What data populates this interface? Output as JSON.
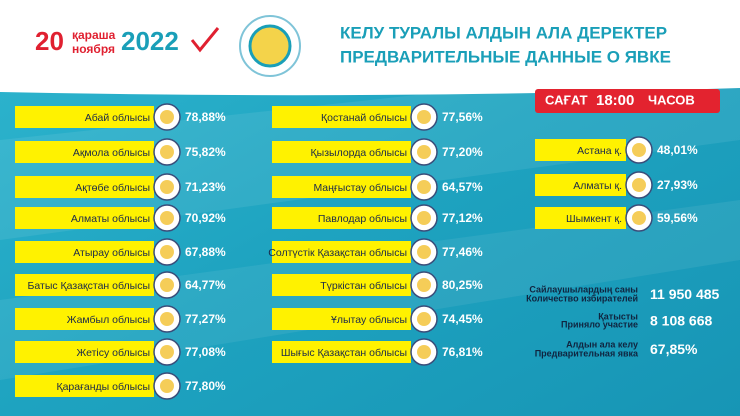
{
  "header": {
    "day": "20",
    "month_kz": "қараша",
    "month_ru": "ноября",
    "year": "2022",
    "title_kz": "КЕЛУ ТУРАЛЫ АЛДЫН АЛА ДЕРЕКТЕР",
    "title_ru": "ПРЕДВАРИТЕЛЬНЫЕ ДАННЫЕ О ЯВКЕ"
  },
  "time_badge": {
    "prefix": "САҒАТ",
    "time": "18:00",
    "suffix": "ЧАСОВ"
  },
  "left": [
    {
      "name": "Абай облысы",
      "value": "78,88%"
    },
    {
      "name": "Ақмола облысы",
      "value": "75,82%"
    },
    {
      "name": "Ақтөбе облысы",
      "value": "71,23%"
    },
    {
      "name": "Алматы облысы",
      "value": "70,92%"
    },
    {
      "name": "Атырау облысы",
      "value": "67,88%"
    },
    {
      "name": "Батыс Қазақстан облысы",
      "value": "64,77%"
    },
    {
      "name": "Жамбыл облысы",
      "value": "77,27%"
    },
    {
      "name": "Жетісу облысы",
      "value": "77,08%"
    },
    {
      "name": "Қарағанды облысы",
      "value": "77,80%"
    }
  ],
  "middle": [
    {
      "name": "Қостанай облысы",
      "value": "77,56%"
    },
    {
      "name": "Қызылорда облысы",
      "value": "77,20%"
    },
    {
      "name": "Маңғыстау облысы",
      "value": "64,57%"
    },
    {
      "name": "Павлодар облысы",
      "value": "77,12%"
    },
    {
      "name": "Солтүстік Қазақстан облысы",
      "value": "77,46%"
    },
    {
      "name": "Түркістан облысы",
      "value": "80,25%"
    },
    {
      "name": "Ұлытау облысы",
      "value": "74,45%"
    },
    {
      "name": "Шығыс Қазақстан облысы",
      "value": "76,81%"
    }
  ],
  "cities": [
    {
      "name": "Астана қ.",
      "value": "48,01%"
    },
    {
      "name": "Алматы қ.",
      "value": "27,93%"
    },
    {
      "name": "Шымкент қ.",
      "value": "59,56%"
    }
  ],
  "stats": [
    {
      "label_kz": "Сайлаушылардың саны",
      "label_ru": "Количество избирателей",
      "value": "11 950 485"
    },
    {
      "label_kz": "Қатысты",
      "label_ru": "Приняло участие",
      "value": "8 108 668"
    },
    {
      "label_kz": "Алдын ала келу",
      "label_ru": "Предварительная явка",
      "value": "67,85%"
    }
  ]
}
